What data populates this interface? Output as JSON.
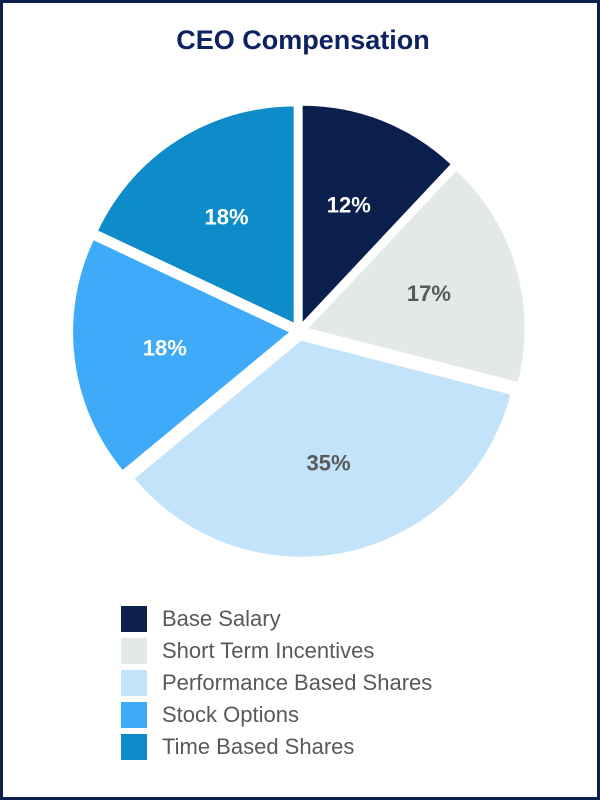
{
  "chart_data": {
    "type": "pie",
    "title": "CEO Compensation",
    "categories": [
      "Base Salary",
      "Short Term Incentives",
      "Performance Based Shares",
      "Stock Options",
      "Time Based Shares"
    ],
    "values": [
      12,
      17,
      35,
      18,
      18
    ],
    "labels": [
      "12%",
      "17%",
      "35%",
      "18%",
      "18%"
    ],
    "colors": [
      "#0b1f4d",
      "#e3e9e6",
      "#c3e3fb",
      "#3eaaf8",
      "#0e8cc9"
    ],
    "label_colors": [
      "#ffffff",
      "#595959",
      "#595959",
      "#ffffff",
      "#ffffff"
    ],
    "exploded": true,
    "legend_position": "bottom"
  }
}
